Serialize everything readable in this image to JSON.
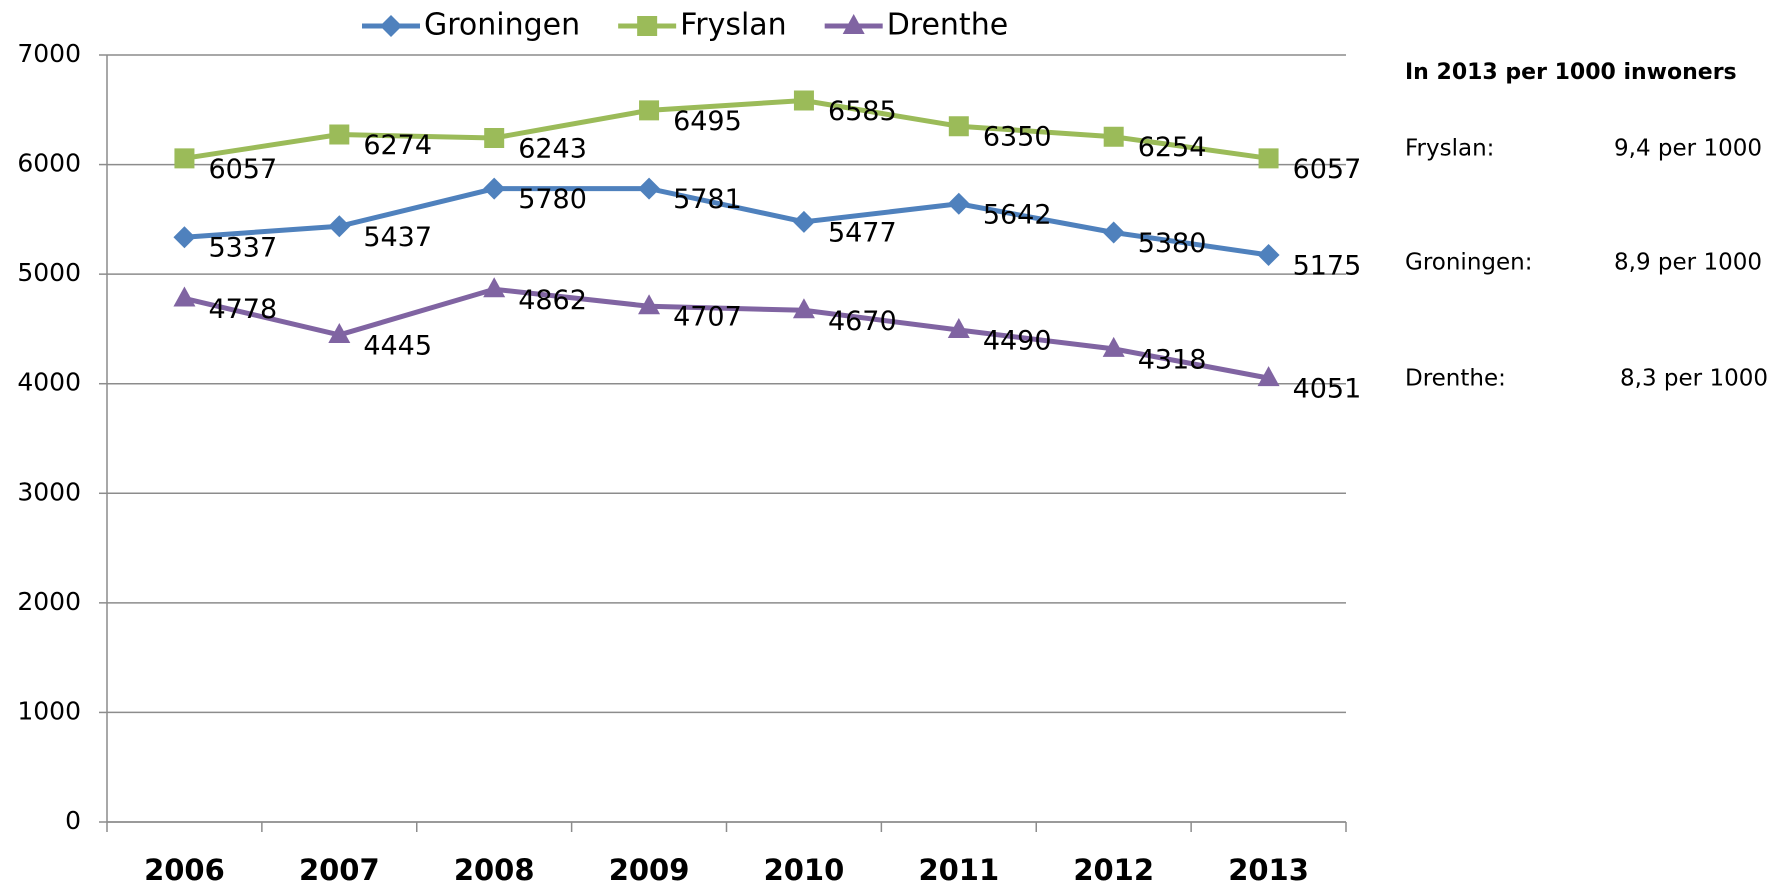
{
  "chart_data": {
    "type": "line",
    "categories": [
      "2006",
      "2007",
      "2008",
      "2009",
      "2010",
      "2011",
      "2012",
      "2013"
    ],
    "series": [
      {
        "name": "Groningen",
        "color": "#4f81bd",
        "marker": "diamond",
        "values": [
          5337,
          5437,
          5780,
          5781,
          5477,
          5642,
          5380,
          5175
        ]
      },
      {
        "name": "Fryslan",
        "color": "#9bbb59",
        "marker": "square",
        "values": [
          6057,
          6274,
          6243,
          6495,
          6585,
          6350,
          6254,
          6057
        ]
      },
      {
        "name": "Drenthe",
        "color": "#8064a2",
        "marker": "triangle",
        "values": [
          4778,
          4445,
          4862,
          4707,
          4670,
          4490,
          4318,
          4051
        ]
      }
    ],
    "ylim": [
      0,
      7000
    ],
    "yticks": [
      0,
      1000,
      2000,
      3000,
      4000,
      5000,
      6000,
      7000
    ],
    "grid": true,
    "legend": "top"
  },
  "side_panel": {
    "title": "In 2013 per 1000 inwoners",
    "rows": [
      {
        "label": "Fryslan:",
        "value": "9,4 per 1000"
      },
      {
        "label": "Groningen:",
        "value": "8,9 per 1000"
      },
      {
        "label": "Drenthe:",
        "value": "8,3 per 1000"
      }
    ]
  }
}
